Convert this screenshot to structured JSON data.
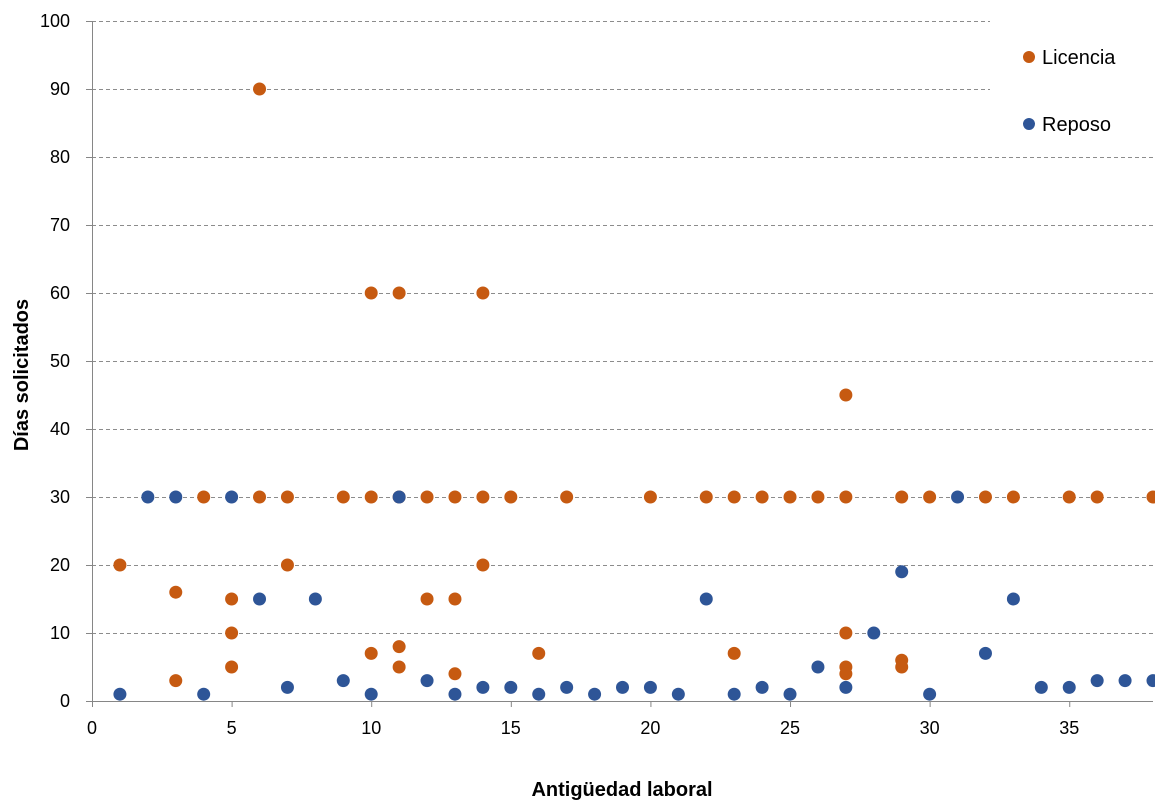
{
  "chart_data": {
    "type": "scatter",
    "title": "",
    "xlabel": "Antigüedad laboral",
    "ylabel": "Días solicitados",
    "xlim": [
      0,
      38
    ],
    "ylim": [
      0,
      100
    ],
    "x_ticks": [
      0,
      5,
      10,
      15,
      20,
      25,
      30,
      35
    ],
    "y_ticks": [
      0,
      10,
      20,
      30,
      40,
      50,
      60,
      70,
      80,
      90,
      100
    ],
    "grid": "horizontal dashed",
    "legend_position": "top-right",
    "series": [
      {
        "name": "Licencia",
        "color": "#C65A11",
        "points": [
          [
            1,
            20
          ],
          [
            3,
            16
          ],
          [
            3,
            3
          ],
          [
            4,
            30
          ],
          [
            5,
            15
          ],
          [
            5,
            10
          ],
          [
            5,
            5
          ],
          [
            6,
            90
          ],
          [
            6,
            30
          ],
          [
            7,
            30
          ],
          [
            7,
            20
          ],
          [
            9,
            30
          ],
          [
            10,
            60
          ],
          [
            10,
            30
          ],
          [
            10,
            7
          ],
          [
            11,
            60
          ],
          [
            11,
            30
          ],
          [
            11,
            8
          ],
          [
            11,
            5
          ],
          [
            12,
            30
          ],
          [
            12,
            15
          ],
          [
            13,
            30
          ],
          [
            13,
            15
          ],
          [
            13,
            4
          ],
          [
            14,
            60
          ],
          [
            14,
            30
          ],
          [
            14,
            20
          ],
          [
            15,
            30
          ],
          [
            16,
            7
          ],
          [
            17,
            30
          ],
          [
            20,
            30
          ],
          [
            22,
            30
          ],
          [
            23,
            30
          ],
          [
            23,
            7
          ],
          [
            24,
            30
          ],
          [
            25,
            30
          ],
          [
            26,
            30
          ],
          [
            27,
            45
          ],
          [
            27,
            30
          ],
          [
            27,
            10
          ],
          [
            27,
            5
          ],
          [
            27,
            4
          ],
          [
            29,
            30
          ],
          [
            29,
            6
          ],
          [
            29,
            5
          ],
          [
            30,
            30
          ],
          [
            32,
            30
          ],
          [
            33,
            30
          ],
          [
            35,
            30
          ],
          [
            36,
            30
          ],
          [
            38,
            30
          ]
        ]
      },
      {
        "name": "Reposo",
        "color": "#2E5597",
        "points": [
          [
            1,
            1
          ],
          [
            2,
            30
          ],
          [
            3,
            30
          ],
          [
            4,
            1
          ],
          [
            5,
            30
          ],
          [
            6,
            15
          ],
          [
            7,
            2
          ],
          [
            8,
            15
          ],
          [
            9,
            3
          ],
          [
            10,
            1
          ],
          [
            11,
            30
          ],
          [
            12,
            3
          ],
          [
            13,
            1
          ],
          [
            14,
            2
          ],
          [
            15,
            2
          ],
          [
            16,
            1
          ],
          [
            17,
            2
          ],
          [
            18,
            1
          ],
          [
            19,
            2
          ],
          [
            20,
            2
          ],
          [
            21,
            1
          ],
          [
            22,
            15
          ],
          [
            23,
            1
          ],
          [
            24,
            2
          ],
          [
            25,
            1
          ],
          [
            26,
            5
          ],
          [
            27,
            2
          ],
          [
            28,
            10
          ],
          [
            29,
            19
          ],
          [
            30,
            1
          ],
          [
            31,
            30
          ],
          [
            32,
            7
          ],
          [
            33,
            15
          ],
          [
            34,
            2
          ],
          [
            35,
            2
          ],
          [
            36,
            3
          ],
          [
            37,
            3
          ],
          [
            38,
            3
          ]
        ]
      }
    ]
  }
}
